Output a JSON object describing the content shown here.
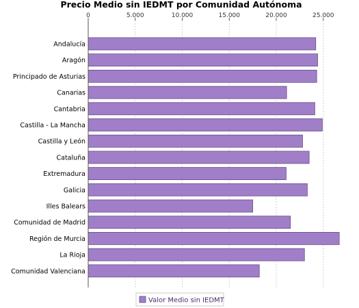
{
  "chart_data": {
    "type": "bar",
    "orientation": "horizontal",
    "title": "Precio Medio sin IEDMT por Comunidad Autónoma",
    "categories": [
      "Andalucía",
      "Aragón",
      "Principado de Asturias",
      "Canarias",
      "Cantabria",
      "Castilla - La Mancha",
      "Castilla y León",
      "Cataluña",
      "Extremadura",
      "Galicia",
      "Illes Balears",
      "Comunidad de Madrid",
      "Región de Murcia",
      "La Rioja",
      "Comunidad Valenciana"
    ],
    "series": [
      {
        "name": "Valor Medio sin IEDMT",
        "color": "#a07fc8",
        "values": [
          24200,
          24400,
          24300,
          21100,
          24100,
          24900,
          22800,
          23500,
          21050,
          23300,
          17500,
          21500,
          26700,
          23000,
          18200
        ]
      }
    ],
    "xlim": [
      0,
      28000
    ],
    "xticks": [
      0,
      5000,
      10000,
      15000,
      20000,
      25000
    ],
    "xtick_labels": [
      "0",
      "5.000",
      "10.000",
      "15.000",
      "20.000",
      "25.000"
    ],
    "xaxis_position": "top",
    "grid": true,
    "legend_position": "bottom"
  }
}
